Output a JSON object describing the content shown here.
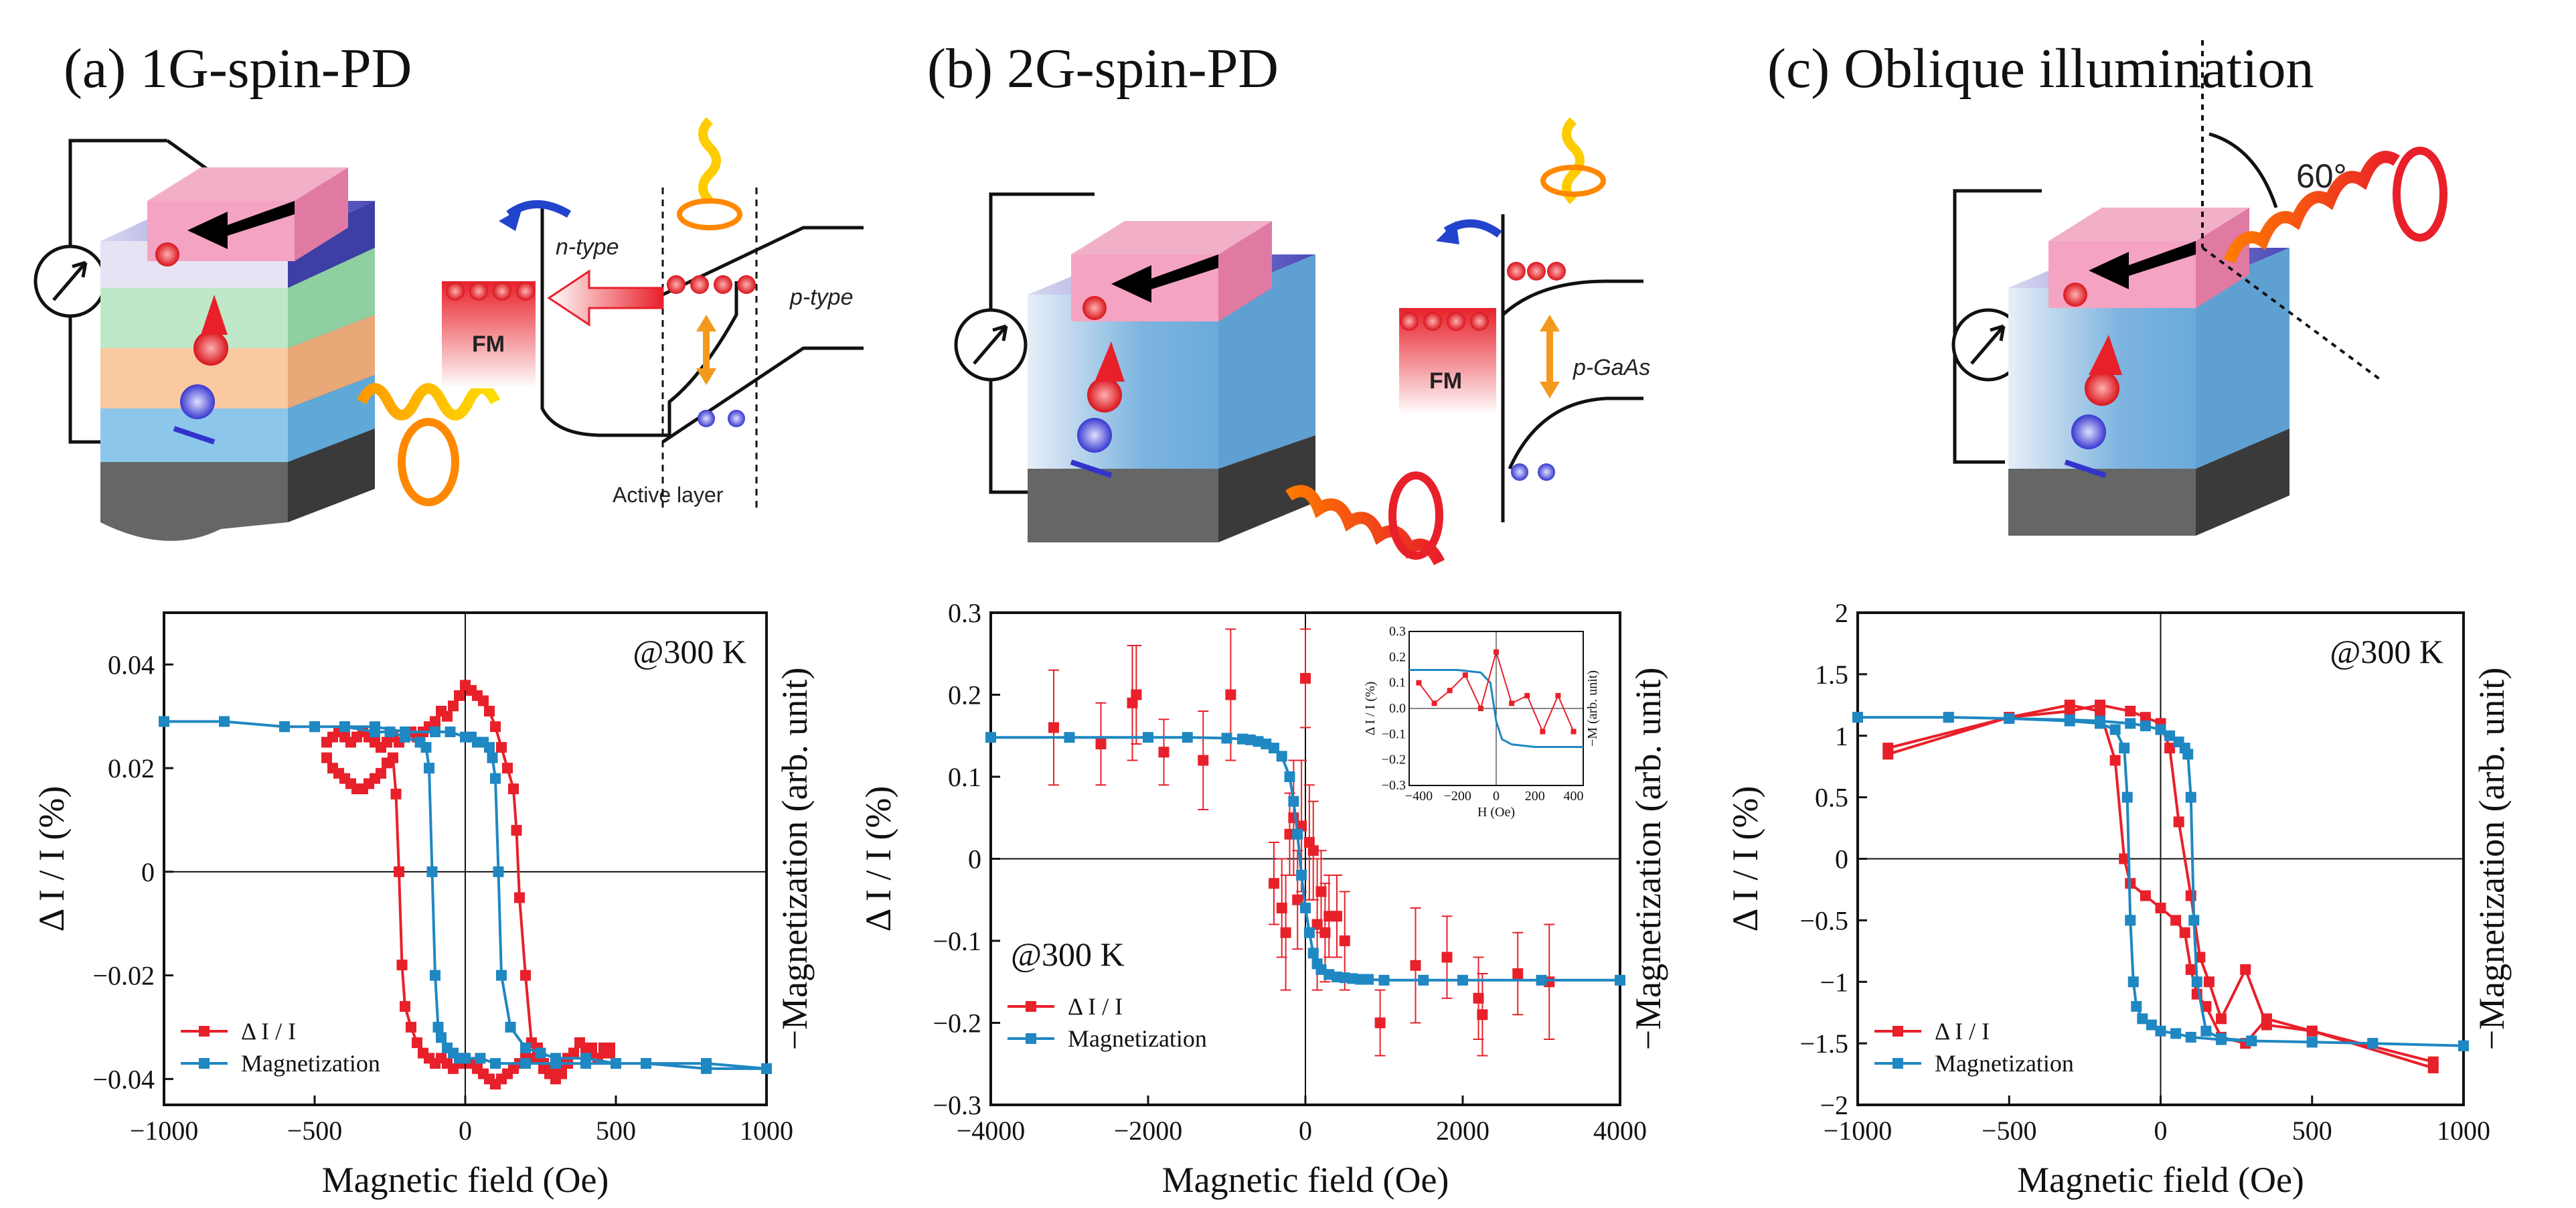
{
  "panels": [
    {
      "title": "(a) 1G-spin-PD",
      "schematic": {
        "n_type": "n-type",
        "p_type": "p-type",
        "fm": "FM",
        "active": "Active layer"
      }
    },
    {
      "title": "(b) 2G-spin-PD",
      "schematic": {
        "fm": "FM",
        "p_gaas": "p-GaAs"
      }
    },
    {
      "title": "(c) Oblique illumination",
      "schematic": {
        "angle": "60°"
      }
    }
  ],
  "colors": {
    "delta": "#e8202a",
    "mag": "#1f87c2",
    "axis": "#111111"
  },
  "chart_data": [
    {
      "type": "line",
      "xlabel": "Magnetic field (Oe)",
      "ylabel_left": "Δ I / I (%)",
      "ylabel_right": "−Magnetization (arb. unit)",
      "annotation": "@300 K",
      "xlim": [
        -1000,
        1000
      ],
      "ylim": [
        -0.045,
        0.05
      ],
      "xticks": [
        -1000,
        -500,
        0,
        500,
        1000
      ],
      "xtick_labels": [
        "−1000",
        "−500",
        "0",
        "500",
        "1000"
      ],
      "yticks": [
        -0.04,
        -0.02,
        0,
        0.02,
        0.04
      ],
      "ytick_labels": [
        "−0.04",
        "−0.02",
        "0",
        "0.02",
        "0.04"
      ],
      "legend": [
        "Δ I / I",
        "Magnetization"
      ],
      "series": [
        {
          "name": "Δ I / I",
          "style": "line-square",
          "x": [
            -460,
            -440,
            -420,
            -400,
            -380,
            -360,
            -340,
            -320,
            -300,
            -280,
            -260,
            -240,
            -230,
            -220,
            -210,
            -200,
            -180,
            -160,
            -140,
            -120,
            -100,
            -80,
            -60,
            -40,
            -20,
            0,
            20,
            40,
            60,
            80,
            100,
            120,
            140,
            160,
            180,
            200,
            220,
            240,
            260,
            280,
            300,
            320,
            340,
            360,
            380,
            400,
            420,
            440,
            460,
            480,
            480,
            460,
            440,
            420,
            400,
            380,
            360,
            340,
            320,
            300,
            280,
            260,
            240,
            220,
            200,
            180,
            170,
            160,
            140,
            120,
            100,
            80,
            60,
            40,
            20,
            0,
            -20,
            -40,
            -60,
            -80,
            -100,
            -120,
            -140,
            -160,
            -180,
            -200,
            -220,
            -240,
            -260,
            -280,
            -300,
            -320,
            -340,
            -360,
            -380,
            -400,
            -420,
            -440,
            -460
          ],
          "y": [
            0.022,
            0.02,
            0.019,
            0.018,
            0.017,
            0.016,
            0.016,
            0.017,
            0.018,
            0.019,
            0.021,
            0.022,
            0.015,
            0.0,
            -0.018,
            -0.026,
            -0.03,
            -0.033,
            -0.035,
            -0.036,
            -0.037,
            -0.036,
            -0.037,
            -0.038,
            -0.037,
            -0.036,
            -0.037,
            -0.038,
            -0.039,
            -0.04,
            -0.041,
            -0.04,
            -0.039,
            -0.038,
            -0.037,
            -0.036,
            -0.036,
            -0.034,
            -0.037,
            -0.038,
            -0.04,
            -0.039,
            -0.037,
            -0.035,
            -0.033,
            -0.034,
            -0.035,
            -0.036,
            -0.034,
            -0.035,
            -0.034,
            -0.035,
            -0.036,
            -0.034,
            -0.035,
            -0.033,
            -0.035,
            -0.036,
            -0.037,
            -0.038,
            -0.039,
            -0.038,
            -0.036,
            -0.033,
            -0.02,
            -0.005,
            0.008,
            0.016,
            0.02,
            0.024,
            0.028,
            0.031,
            0.033,
            0.034,
            0.035,
            0.036,
            0.034,
            0.032,
            0.03,
            0.031,
            0.029,
            0.028,
            0.027,
            0.026,
            0.027,
            0.026,
            0.025,
            0.026,
            0.025,
            0.024,
            0.025,
            0.026,
            0.027,
            0.026,
            0.025,
            0.026,
            0.027,
            0.026,
            0.025
          ]
        },
        {
          "name": "Magnetization",
          "style": "line-square",
          "x": [
            -1000,
            -800,
            -600,
            -500,
            -400,
            -300,
            -250,
            -200,
            -150,
            -130,
            -120,
            -110,
            -100,
            -90,
            -80,
            -60,
            -40,
            -20,
            0,
            50,
            100,
            200,
            300,
            400,
            500,
            600,
            800,
            1000,
            1000,
            800,
            600,
            500,
            400,
            300,
            250,
            200,
            150,
            120,
            110,
            100,
            90,
            80,
            60,
            40,
            20,
            0,
            -50,
            -100,
            -200,
            -300,
            -400,
            -500,
            -600,
            -800,
            -1000
          ],
          "y": [
            0.029,
            0.029,
            0.028,
            0.028,
            0.028,
            0.027,
            0.027,
            0.026,
            0.025,
            0.024,
            0.02,
            0.0,
            -0.02,
            -0.03,
            -0.032,
            -0.034,
            -0.035,
            -0.036,
            -0.036,
            -0.036,
            -0.037,
            -0.037,
            -0.037,
            -0.037,
            -0.037,
            -0.037,
            -0.038,
            -0.038,
            -0.038,
            -0.037,
            -0.037,
            -0.037,
            -0.036,
            -0.036,
            -0.035,
            -0.034,
            -0.03,
            -0.02,
            0.0,
            0.018,
            0.022,
            0.024,
            0.025,
            0.025,
            0.026,
            0.026,
            0.027,
            0.027,
            0.027,
            0.028,
            0.028,
            0.028,
            0.028,
            0.029,
            0.029
          ]
        }
      ]
    },
    {
      "type": "line",
      "xlabel": "Magnetic field (Oe)",
      "ylabel_left": "Δ I / I (%)",
      "ylabel_right": "−Magnetization (arb. unit)",
      "annotation": "@300 K",
      "xlim": [
        -4000,
        4000
      ],
      "ylim": [
        -0.3,
        0.3
      ],
      "xticks": [
        -4000,
        -2000,
        0,
        2000,
        4000
      ],
      "xtick_labels": [
        "−4000",
        "−2000",
        "0",
        "2000",
        "4000"
      ],
      "yticks": [
        -0.3,
        -0.2,
        -0.1,
        0,
        0.1,
        0.2,
        0.3
      ],
      "ytick_labels": [
        "−0.3",
        "−0.2",
        "−0.1",
        "0",
        "0.1",
        "0.2",
        "0.3"
      ],
      "legend": [
        "Δ I / I",
        "Magnetization"
      ],
      "series": [
        {
          "name": "Δ I / I",
          "style": "square-errorbar",
          "x": [
            -3200,
            -2600,
            -2200,
            -2150,
            -1800,
            -1300,
            -950,
            -400,
            -300,
            -250,
            -200,
            -150,
            -100,
            -50,
            0,
            50,
            100,
            150,
            200,
            250,
            300,
            400,
            500,
            950,
            1400,
            1800,
            2200,
            2250,
            2700,
            3100
          ],
          "y": [
            0.16,
            0.14,
            0.19,
            0.2,
            0.13,
            0.12,
            0.2,
            -0.03,
            -0.06,
            -0.09,
            0.03,
            0.05,
            -0.05,
            0.04,
            0.22,
            0.02,
            0.01,
            -0.08,
            -0.04,
            -0.09,
            -0.07,
            -0.07,
            -0.1,
            -0.2,
            -0.13,
            -0.12,
            -0.17,
            -0.19,
            -0.14,
            -0.15
          ],
          "err": [
            0.07,
            0.05,
            0.07,
            0.06,
            0.04,
            0.06,
            0.08,
            0.05,
            0.06,
            0.07,
            0.05,
            0.07,
            0.06,
            0.08,
            0.06,
            0.07,
            0.06,
            0.08,
            0.05,
            0.06,
            0.05,
            0.05,
            0.06,
            0.04,
            0.07,
            0.05,
            0.05,
            0.05,
            0.05,
            0.07
          ]
        },
        {
          "name": "Magnetization",
          "style": "line-square",
          "x": [
            -4000,
            -3000,
            -2000,
            -1500,
            -1000,
            -800,
            -700,
            -600,
            -500,
            -400,
            -300,
            -200,
            -150,
            -100,
            -50,
            0,
            50,
            100,
            150,
            200,
            300,
            400,
            500,
            600,
            700,
            800,
            1000,
            1500,
            2000,
            3000,
            4000
          ],
          "y": [
            0.148,
            0.148,
            0.148,
            0.148,
            0.147,
            0.146,
            0.145,
            0.143,
            0.14,
            0.135,
            0.125,
            0.1,
            0.07,
            0.03,
            -0.02,
            -0.06,
            -0.09,
            -0.115,
            -0.128,
            -0.135,
            -0.141,
            -0.144,
            -0.145,
            -0.146,
            -0.147,
            -0.147,
            -0.148,
            -0.148,
            -0.148,
            -0.148,
            -0.148
          ]
        }
      ],
      "inset": {
        "xlabel": "H (Oe)",
        "ylabel_left": "Δ I / I (%)",
        "ylabel_right": "−M (arb. unit)",
        "xlim": [
          -450,
          450
        ],
        "ylim": [
          -0.3,
          0.3
        ],
        "xticks": [
          -400,
          -200,
          0,
          200,
          400
        ],
        "xtick_labels": [
          "−400",
          "−200",
          "0",
          "200",
          "400"
        ],
        "yticks": [
          -0.3,
          -0.2,
          -0.1,
          0,
          0.1,
          0.2,
          0.3
        ],
        "ytick_labels": [
          "−0.3",
          "−0.2",
          "−0.1",
          "0.0",
          "0.1",
          "0.2",
          "0.3"
        ],
        "red_x": [
          -400,
          -320,
          -240,
          -160,
          -80,
          0,
          80,
          160,
          240,
          320,
          400
        ],
        "red_y": [
          0.1,
          0.02,
          0.07,
          0.13,
          0.0,
          0.22,
          0.02,
          0.05,
          -0.09,
          0.05,
          -0.09
        ],
        "blue_x": [
          -450,
          -200,
          -80,
          -30,
          0,
          30,
          80,
          200,
          450
        ],
        "blue_y": [
          0.15,
          0.15,
          0.14,
          0.1,
          -0.05,
          -0.12,
          -0.14,
          -0.15,
          -0.15
        ]
      }
    },
    {
      "type": "line",
      "xlabel": "Magnetic field (Oe)",
      "ylabel_left": "Δ I / I (%)",
      "ylabel_right": "−Magnetization (arb. unit)",
      "annotation": "@300 K",
      "xlim": [
        -1000,
        1000
      ],
      "ylim": [
        -2,
        2
      ],
      "xticks": [
        -1000,
        -500,
        0,
        500,
        1000
      ],
      "xtick_labels": [
        "−1000",
        "−500",
        "0",
        "500",
        "1000"
      ],
      "yticks": [
        -2,
        -1.5,
        -1,
        -0.5,
        0,
        0.5,
        1,
        1.5,
        2
      ],
      "ytick_labels": [
        "−2",
        "−1.5",
        "−1",
        "−0.5",
        "0",
        "0.5",
        "1",
        "1.5",
        "2"
      ],
      "legend": [
        "Δ I / I",
        "Magnetization"
      ],
      "series": [
        {
          "name": "Δ I / I",
          "style": "line-square",
          "x": [
            -900,
            -500,
            -300,
            -200,
            -100,
            -50,
            0,
            30,
            60,
            100,
            130,
            160,
            200,
            280,
            350,
            500,
            900,
            900,
            500,
            350,
            280,
            200,
            150,
            120,
            100,
            80,
            50,
            0,
            -50,
            -100,
            -120,
            -150,
            -200,
            -300,
            -500,
            -900
          ],
          "y": [
            0.9,
            1.15,
            1.2,
            1.25,
            1.2,
            1.15,
            1.1,
            0.9,
            0.3,
            -0.3,
            -0.8,
            -1.0,
            -1.3,
            -0.9,
            -1.35,
            -1.4,
            -1.7,
            -1.65,
            -1.4,
            -1.3,
            -1.5,
            -1.45,
            -1.2,
            -1.1,
            -0.9,
            -0.6,
            -0.5,
            -0.4,
            -0.3,
            -0.2,
            0.0,
            0.8,
            1.2,
            1.25,
            1.15,
            0.85
          ]
        },
        {
          "name": "Magnetization",
          "style": "line-square",
          "x": [
            -1000,
            -700,
            -500,
            -300,
            -200,
            -150,
            -120,
            -110,
            -100,
            -90,
            -80,
            -60,
            -30,
            0,
            50,
            100,
            200,
            300,
            500,
            700,
            1000,
            1000,
            700,
            500,
            300,
            200,
            150,
            120,
            110,
            100,
            90,
            80,
            60,
            30,
            0,
            -50,
            -100,
            -200,
            -300,
            -500,
            -700,
            -1000
          ],
          "y": [
            1.15,
            1.15,
            1.14,
            1.12,
            1.1,
            1.05,
            0.9,
            0.5,
            -0.5,
            -1.0,
            -1.2,
            -1.3,
            -1.35,
            -1.4,
            -1.42,
            -1.45,
            -1.47,
            -1.48,
            -1.49,
            -1.5,
            -1.52,
            -1.52,
            -1.5,
            -1.49,
            -1.48,
            -1.46,
            -1.4,
            -1.0,
            -0.5,
            0.5,
            0.85,
            0.9,
            0.95,
            1.0,
            1.05,
            1.08,
            1.1,
            1.12,
            1.13,
            1.14,
            1.15,
            1.15
          ]
        }
      ]
    }
  ]
}
